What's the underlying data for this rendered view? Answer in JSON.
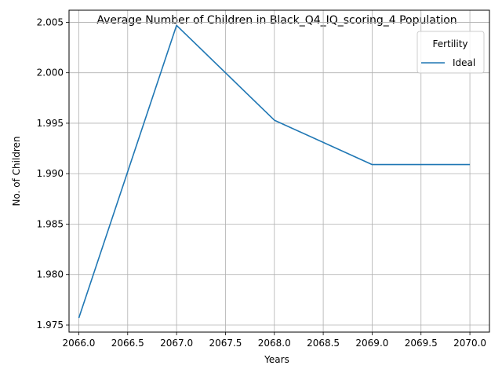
{
  "chart_data": {
    "type": "line",
    "title": "Average Number of Children in Black_Q4_IQ_scoring_4 Population",
    "xlabel": "Years",
    "ylabel": "No. of Children",
    "x": [
      2066,
      2067,
      2068,
      2069,
      2070
    ],
    "series": [
      {
        "name": "Ideal",
        "values": [
          1.9757,
          2.0047,
          1.9953,
          1.9909,
          1.9909
        ],
        "color": "#1f77b4"
      }
    ],
    "xlim": [
      2065.9,
      2070.2
    ],
    "ylim": [
      1.9743,
      2.0062
    ],
    "xticks": [
      "2066.0",
      "2066.5",
      "2067.0",
      "2067.5",
      "2068.0",
      "2068.5",
      "2069.0",
      "2069.5",
      "2070.0"
    ],
    "yticks": [
      "1.975",
      "1.980",
      "1.985",
      "1.990",
      "1.995",
      "2.000",
      "2.005"
    ],
    "grid": true,
    "legend": {
      "title": "Fertility",
      "position": "top-right"
    }
  }
}
